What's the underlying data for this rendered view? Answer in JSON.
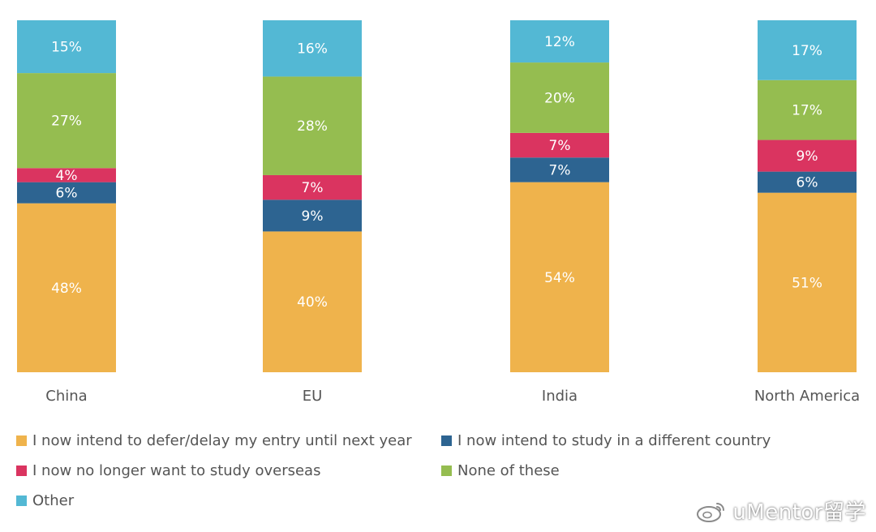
{
  "chart_data": {
    "type": "bar",
    "stacked": true,
    "orientation": "vertical",
    "categories": [
      "China",
      "EU",
      "India",
      "North America"
    ],
    "series": [
      {
        "name": "I now intend to defer/delay my entry until next year",
        "color": "#efb34c",
        "values": [
          48,
          40,
          54,
          51
        ],
        "labels": [
          "48%",
          "40%",
          "54%",
          "51%"
        ]
      },
      {
        "name": "I now intend to study in a different country",
        "color": "#2d6491",
        "values": [
          6,
          9,
          7,
          6
        ],
        "labels": [
          "6%",
          "9%",
          "7%",
          "6%"
        ]
      },
      {
        "name": "I now no longer want to study overseas",
        "color": "#da3460",
        "values": [
          4,
          7,
          7,
          9
        ],
        "labels": [
          "4%",
          "7%",
          "7%",
          "9%"
        ]
      },
      {
        "name": "None of these",
        "color": "#95bd50",
        "values": [
          27,
          28,
          20,
          17
        ],
        "labels": [
          "27%",
          "28%",
          "20%",
          "17%"
        ]
      },
      {
        "name": "Other",
        "color": "#53b8d4",
        "values": [
          15,
          16,
          12,
          17
        ],
        "labels": [
          "15%",
          "16%",
          "12%",
          "17%"
        ]
      }
    ],
    "ylim": [
      0,
      100
    ],
    "grid": false,
    "legend_position": "bottom"
  },
  "legend": {
    "items": [
      {
        "label": "I now intend to defer/delay my entry until next year",
        "color": "#efb34c"
      },
      {
        "label": "I now intend to study in a different country",
        "color": "#2d6491"
      },
      {
        "label": "I now no longer want to study overseas",
        "color": "#da3460"
      },
      {
        "label": "None of these",
        "color": "#95bd50"
      },
      {
        "label": "Other",
        "color": "#53b8d4"
      }
    ]
  },
  "watermark": {
    "text": "uMentor留学",
    "icon": "weibo-icon"
  }
}
